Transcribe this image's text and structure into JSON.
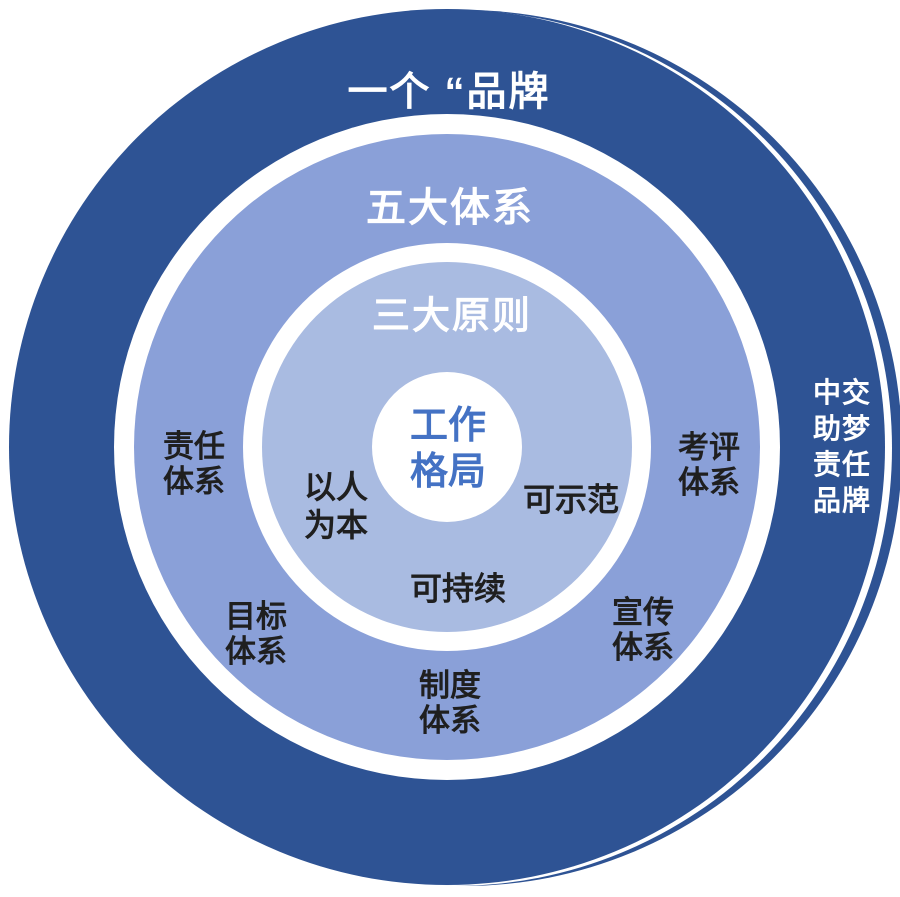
{
  "colors": {
    "outer_ring": "#2E5394",
    "middle_ring": "#8AA0D8",
    "inner_ring": "#A9BBE1",
    "gap_rings": "#FFFFFF",
    "center_circle": "#FFFFFF",
    "center_text": "#4472C4",
    "dark_label_text": "#1F1F1F",
    "ring_title_text": "#FFFFFF"
  },
  "diagram": {
    "outer_ring": {
      "label": "一个 “品牌",
      "side_label_lines": [
        "中交",
        "助梦",
        "责任",
        "品牌"
      ]
    },
    "middle_ring": {
      "label": "五大体系",
      "items": [
        {
          "name": "责任体系",
          "lines": [
            "责任",
            "体系"
          ]
        },
        {
          "name": "考评体系",
          "lines": [
            "考评",
            "体系"
          ]
        },
        {
          "name": "目标体系",
          "lines": [
            "目标",
            "体系"
          ]
        },
        {
          "name": "宣传体系",
          "lines": [
            "宣传",
            "体系"
          ]
        },
        {
          "name": "制度体系",
          "lines": [
            "制度",
            "体系"
          ]
        }
      ]
    },
    "inner_ring": {
      "label": "三大原则",
      "items": [
        {
          "name": "以人为本",
          "lines": [
            "以人",
            "为本"
          ]
        },
        {
          "name": "可示范",
          "lines": [
            "可示范"
          ]
        },
        {
          "name": "可持续",
          "lines": [
            "可持续"
          ]
        }
      ]
    },
    "center": {
      "lines": [
        "工作",
        "格局"
      ]
    }
  }
}
